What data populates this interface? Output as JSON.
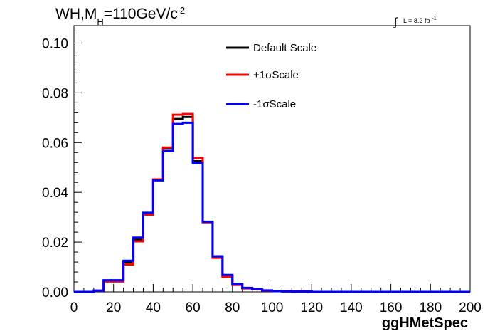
{
  "chart_data": {
    "type": "line",
    "drawstyle": "step",
    "title": "WH,M",
    "title_subscript": "H",
    "title_rest": "=110GeV/c",
    "title_superscript": "2",
    "lumi_integral": "∫",
    "lumi_text": "L = 8.2 fb",
    "lumi_sup": "-1",
    "xlabel": "ggHMetSpec",
    "ylabel": "",
    "xlim": [
      0,
      200
    ],
    "ylim": [
      0,
      0.107
    ],
    "x_ticks": [
      0,
      20,
      40,
      60,
      80,
      100,
      120,
      140,
      160,
      180,
      200
    ],
    "x_tick_labels": [
      "0",
      "20",
      "40",
      "60",
      "80",
      "100",
      "120",
      "140",
      "160",
      "180",
      "200"
    ],
    "y_ticks": [
      0,
      0.02,
      0.04,
      0.06,
      0.08,
      0.1
    ],
    "y_tick_labels": [
      "0.00",
      "0.02",
      "0.04",
      "0.06",
      "0.08",
      "0.10"
    ],
    "bin_edges": [
      0,
      5,
      10,
      15,
      20,
      25,
      30,
      35,
      40,
      45,
      50,
      55,
      60,
      65,
      70,
      75,
      80,
      85,
      90,
      95,
      100,
      105,
      110,
      115,
      120,
      125,
      130,
      135,
      140,
      145,
      150,
      155,
      160,
      165,
      170,
      175,
      180,
      185,
      190,
      195,
      200
    ],
    "legend_position": "top-center",
    "grid": false,
    "series": [
      {
        "name": "Default Scale",
        "color": "#000000",
        "values": [
          0,
          0,
          0.0005,
          0.0045,
          0.0045,
          0.012,
          0.021,
          0.0315,
          0.045,
          0.0575,
          0.0695,
          0.0703,
          0.0525,
          0.028,
          0.014,
          0.0065,
          0.003,
          0.0015,
          0.001,
          0.0005,
          0.0003,
          0.0002,
          0.0001,
          0.0001,
          0,
          0,
          0,
          0,
          0,
          0,
          0,
          0,
          0,
          0,
          0,
          0,
          0,
          0,
          0,
          0
        ]
      },
      {
        "name": "+1σScale",
        "color": "#ff0000",
        "values": [
          0,
          0,
          0.0005,
          0.0042,
          0.0042,
          0.011,
          0.0203,
          0.031,
          0.0452,
          0.058,
          0.0712,
          0.0715,
          0.0538,
          0.028,
          0.0137,
          0.006,
          0.0028,
          0.0014,
          0.001,
          0.0005,
          0.0003,
          0.0002,
          0.0001,
          0.0001,
          0,
          0,
          0,
          0,
          0,
          0,
          0,
          0,
          0,
          0,
          0,
          0,
          0,
          0,
          0,
          0
        ]
      },
      {
        "name": "-1σScale",
        "color": "#0000ff",
        "values": [
          0,
          0,
          0.0005,
          0.0047,
          0.0047,
          0.0125,
          0.0218,
          0.0318,
          0.0448,
          0.0565,
          0.0675,
          0.068,
          0.0518,
          0.0282,
          0.0143,
          0.0068,
          0.0032,
          0.0016,
          0.0011,
          0.0006,
          0.0003,
          0.0002,
          0.0001,
          0.0001,
          0,
          0,
          0,
          0,
          0,
          0,
          0,
          0,
          0,
          0,
          0,
          0,
          0,
          0,
          0,
          0
        ]
      }
    ]
  }
}
